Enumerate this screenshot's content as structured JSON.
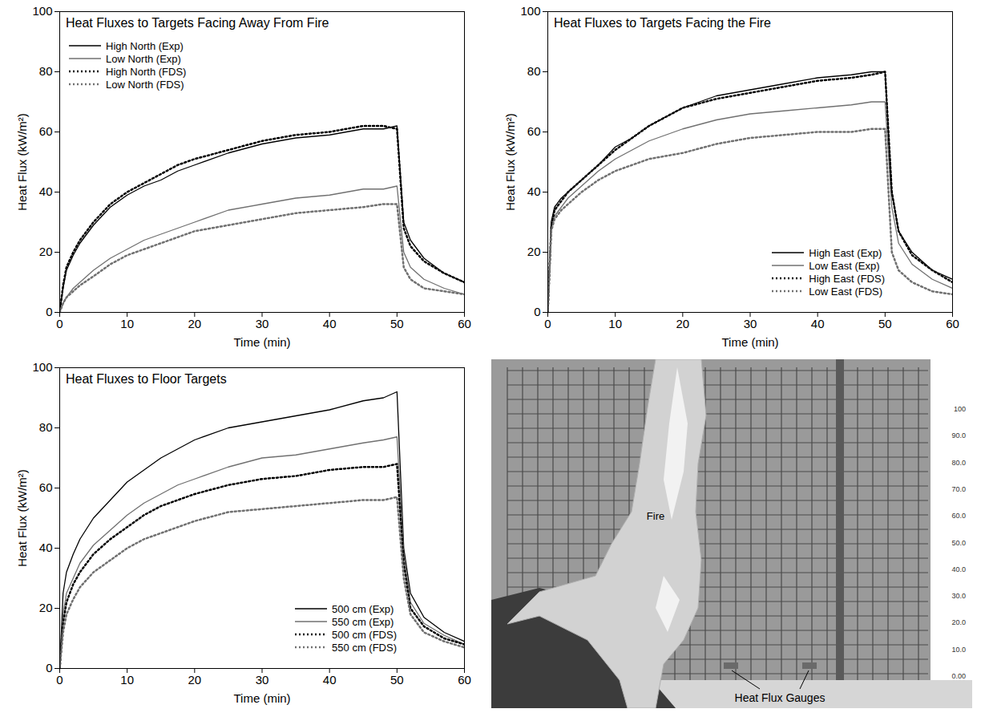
{
  "chart_data": [
    {
      "type": "line",
      "title": "Heat Fluxes to Targets Facing Away From Fire",
      "x_label": "Time (min)",
      "y_label": "Heat Flux (kW/m²)",
      "x": [
        0,
        0.5,
        1,
        2,
        3,
        5,
        7.5,
        10,
        12.5,
        15,
        17.5,
        20,
        25,
        30,
        35,
        40,
        45,
        48,
        50,
        51,
        52,
        54,
        57,
        60
      ],
      "series": [
        {
          "name": "High North (Exp)",
          "color": "#000000",
          "line_style": "solid",
          "values": [
            0,
            8,
            14,
            19,
            23,
            29,
            35,
            39,
            42,
            44,
            47,
            49,
            53,
            56,
            58,
            59,
            61,
            61,
            62,
            30,
            24,
            18,
            13,
            10
          ]
        },
        {
          "name": "Low North (Exp)",
          "color": "#707070",
          "line_style": "solid",
          "values": [
            0,
            3,
            5,
            8,
            10,
            14,
            18,
            21,
            24,
            26,
            28,
            30,
            34,
            36,
            38,
            39,
            41,
            41,
            42,
            20,
            15,
            11,
            8,
            6
          ]
        },
        {
          "name": "High North (FDS)",
          "color": "#000000",
          "line_style": "dotted",
          "values": [
            0,
            9,
            15,
            20,
            24,
            30,
            36,
            40,
            43,
            46,
            49,
            51,
            54,
            57,
            59,
            60,
            62,
            62,
            61,
            28,
            22,
            17,
            13,
            10
          ]
        },
        {
          "name": "Low North (FDS)",
          "color": "#707070",
          "line_style": "dotted",
          "values": [
            0,
            3,
            5,
            7,
            9,
            12,
            16,
            19,
            21,
            23,
            25,
            27,
            29,
            31,
            33,
            34,
            35,
            36,
            36,
            15,
            11,
            8,
            7,
            6
          ]
        }
      ],
      "xlim": [
        0,
        60
      ],
      "xticks": [
        0,
        10,
        20,
        30,
        40,
        50,
        60
      ],
      "ylim": [
        0,
        100
      ],
      "yticks": [
        0,
        20,
        40,
        60,
        80,
        100
      ],
      "legend": "upper left"
    },
    {
      "type": "line",
      "title": "Heat Fluxes to Targets Facing the Fire",
      "x_label": "Time (min)",
      "y_label": "Heat Flux (kW/m²)",
      "x": [
        0,
        0.5,
        1,
        2,
        3,
        5,
        7.5,
        10,
        12.5,
        15,
        17.5,
        20,
        25,
        30,
        35,
        40,
        45,
        48,
        50,
        51,
        52,
        54,
        57,
        60
      ],
      "series": [
        {
          "name": "High East (Exp)",
          "color": "#000000",
          "line_style": "solid",
          "values": [
            0,
            30,
            35,
            38,
            40,
            44,
            49,
            55,
            58,
            62,
            65,
            68,
            72,
            74,
            76,
            78,
            79,
            80,
            80,
            40,
            27,
            20,
            14,
            11
          ]
        },
        {
          "name": "Low East (Exp)",
          "color": "#707070",
          "line_style": "solid",
          "values": [
            0,
            28,
            32,
            35,
            38,
            42,
            47,
            51,
            54,
            57,
            59,
            61,
            64,
            66,
            67,
            68,
            69,
            70,
            70,
            35,
            23,
            16,
            11,
            8
          ]
        },
        {
          "name": "High East (FDS)",
          "color": "#000000",
          "line_style": "dotted",
          "values": [
            0,
            28,
            34,
            37,
            40,
            44,
            49,
            54,
            58,
            62,
            65,
            68,
            71,
            73,
            75,
            77,
            78,
            79,
            80,
            40,
            27,
            19,
            14,
            10
          ]
        },
        {
          "name": "Low East (FDS)",
          "color": "#707070",
          "line_style": "dotted",
          "values": [
            0,
            27,
            31,
            34,
            36,
            40,
            44,
            47,
            49,
            51,
            52,
            53,
            56,
            58,
            59,
            60,
            60,
            61,
            61,
            20,
            14,
            10,
            7,
            6
          ]
        }
      ],
      "xlim": [
        0,
        60
      ],
      "xticks": [
        0,
        10,
        20,
        30,
        40,
        50,
        60
      ],
      "ylim": [
        0,
        100
      ],
      "yticks": [
        0,
        20,
        40,
        60,
        80,
        100
      ],
      "legend": "lower right"
    },
    {
      "type": "line",
      "title": "Heat Fluxes to Floor Targets",
      "x_label": "Time (min)",
      "y_label": "Heat Flux (kW/m²)",
      "x": [
        0,
        0.5,
        1,
        2,
        3,
        5,
        7.5,
        10,
        12.5,
        15,
        17.5,
        20,
        25,
        30,
        35,
        40,
        45,
        48,
        50,
        51,
        52,
        54,
        57,
        60
      ],
      "series": [
        {
          "name": "500 cm (Exp)",
          "color": "#000000",
          "line_style": "solid",
          "values": [
            0,
            25,
            32,
            38,
            43,
            50,
            56,
            62,
            66,
            70,
            73,
            76,
            80,
            82,
            84,
            86,
            89,
            90,
            92,
            40,
            25,
            17,
            12,
            9
          ]
        },
        {
          "name": "550 cm (Exp)",
          "color": "#707070",
          "line_style": "solid",
          "values": [
            0,
            18,
            25,
            30,
            35,
            41,
            46,
            51,
            55,
            58,
            61,
            63,
            67,
            70,
            71,
            73,
            75,
            76,
            77,
            38,
            22,
            15,
            11,
            8
          ]
        },
        {
          "name": "500 cm (FDS)",
          "color": "#000000",
          "line_style": "dotted",
          "values": [
            0,
            15,
            22,
            28,
            32,
            38,
            43,
            47,
            51,
            54,
            56,
            58,
            61,
            63,
            64,
            66,
            67,
            67,
            68,
            35,
            20,
            14,
            10,
            8
          ]
        },
        {
          "name": "550 cm (FDS)",
          "color": "#707070",
          "line_style": "dotted",
          "values": [
            0,
            12,
            18,
            23,
            27,
            32,
            36,
            40,
            43,
            45,
            47,
            49,
            52,
            53,
            54,
            55,
            56,
            56,
            57,
            30,
            18,
            12,
            9,
            7
          ]
        }
      ],
      "xlim": [
        0,
        60
      ],
      "xticks": [
        0,
        10,
        20,
        30,
        40,
        50,
        60
      ],
      "ylim": [
        0,
        100
      ],
      "yticks": [
        0,
        20,
        40,
        60,
        80,
        100
      ],
      "legend": "lower right"
    },
    {
      "type": "image",
      "labels": [
        "Fire",
        "Heat Flux Gauges"
      ],
      "colorbar_lim": [
        0,
        100
      ],
      "colorbar_ticks": [
        {
          "value": 100,
          "label": "100"
        },
        {
          "value": 90,
          "label": "90.0"
        },
        {
          "value": 80,
          "label": "80.0"
        },
        {
          "value": 70,
          "label": "70.0"
        },
        {
          "value": 60,
          "label": "60.0"
        },
        {
          "value": 50,
          "label": "50.0"
        },
        {
          "value": 40,
          "label": "40.0"
        },
        {
          "value": 30,
          "label": "30.0"
        },
        {
          "value": 20,
          "label": "20.0"
        },
        {
          "value": 10,
          "label": "10.0"
        },
        {
          "value": 0,
          "label": "0.00"
        }
      ]
    }
  ]
}
